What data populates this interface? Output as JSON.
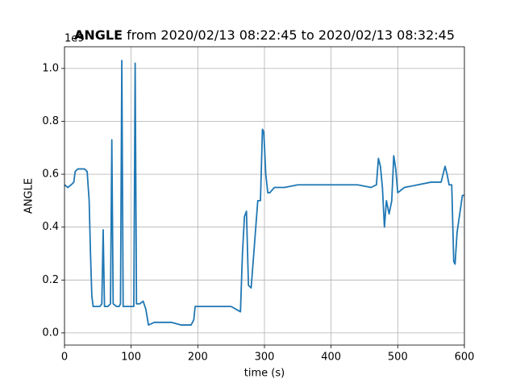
{
  "chart_data": {
    "type": "line",
    "title": {
      "bold": "ANGLE",
      "rest": "from 2020/02/13 08:22:45 to 2020/02/13 08:32:45"
    },
    "y_offset_label": "1e9",
    "xlabel": "time (s)",
    "ylabel": "ANGLE",
    "x": [
      0,
      5,
      10,
      14,
      16,
      20,
      25,
      30,
      34,
      37,
      39,
      41,
      43,
      48,
      53,
      56,
      58,
      60,
      65,
      69,
      71,
      73,
      78,
      82,
      84,
      86,
      88,
      95,
      101,
      104,
      106,
      108,
      113,
      118,
      122,
      126,
      135,
      145,
      160,
      175,
      190,
      194,
      196,
      210,
      230,
      250,
      264,
      267,
      270,
      273,
      276,
      280,
      284,
      287,
      290,
      294,
      297,
      299,
      302,
      305,
      308,
      315,
      330,
      350,
      370,
      400,
      420,
      440,
      460,
      468,
      471,
      474,
      477,
      480,
      483,
      487,
      491,
      494,
      497,
      500,
      510,
      530,
      550,
      565,
      571,
      574,
      577,
      581,
      584,
      586,
      589,
      593,
      597,
      600
    ],
    "series": [
      {
        "name": "ANGLE",
        "color": "#1f77b4",
        "values": [
          0.56,
          0.55,
          0.56,
          0.57,
          0.61,
          0.62,
          0.62,
          0.62,
          0.61,
          0.5,
          0.3,
          0.14,
          0.1,
          0.1,
          0.1,
          0.11,
          0.39,
          0.1,
          0.1,
          0.11,
          0.73,
          0.11,
          0.1,
          0.1,
          0.11,
          1.03,
          0.1,
          0.1,
          0.1,
          0.1,
          1.02,
          0.11,
          0.11,
          0.12,
          0.09,
          0.03,
          0.04,
          0.04,
          0.04,
          0.03,
          0.03,
          0.05,
          0.1,
          0.1,
          0.1,
          0.1,
          0.08,
          0.3,
          0.44,
          0.46,
          0.18,
          0.17,
          0.3,
          0.4,
          0.5,
          0.5,
          0.77,
          0.76,
          0.6,
          0.53,
          0.53,
          0.55,
          0.55,
          0.56,
          0.56,
          0.56,
          0.56,
          0.56,
          0.55,
          0.56,
          0.66,
          0.63,
          0.55,
          0.4,
          0.5,
          0.45,
          0.5,
          0.67,
          0.62,
          0.53,
          0.55,
          0.56,
          0.57,
          0.57,
          0.63,
          0.6,
          0.56,
          0.56,
          0.27,
          0.26,
          0.38,
          0.45,
          0.52,
          0.52
        ]
      }
    ],
    "xlim": [
      0,
      600
    ],
    "ylim": [
      -0.046,
      1.082
    ],
    "xticks": [
      0,
      100,
      200,
      300,
      400,
      500,
      600
    ],
    "yticks": [
      {
        "value": 0,
        "label": "0.0"
      },
      0.2,
      0.4,
      0.6,
      0.8,
      {
        "value": 1,
        "label": "1.0"
      }
    ],
    "grid": true
  }
}
